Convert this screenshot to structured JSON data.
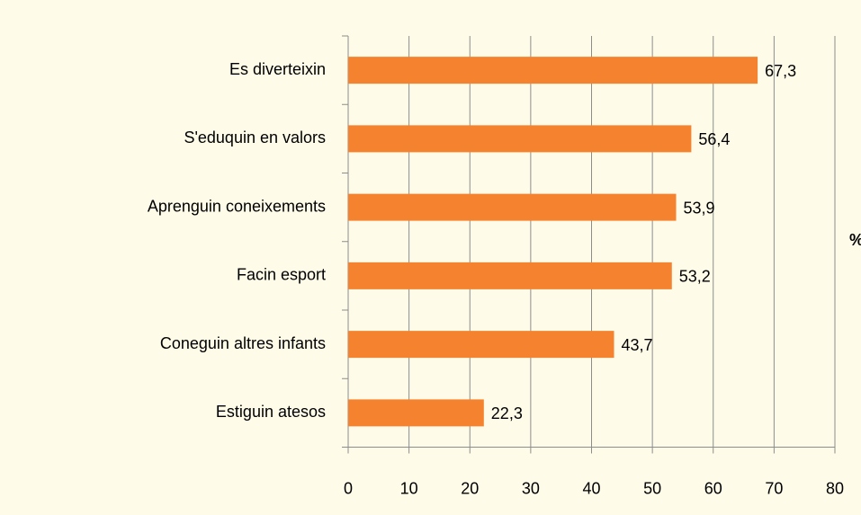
{
  "chart_data": {
    "type": "barh",
    "categories": [
      "Es diverteixin",
      "S'eduquin en valors",
      "Aprenguin coneixements",
      "Facin esport",
      "Coneguin altres infants",
      "Estiguin atesos"
    ],
    "values": [
      67.3,
      56.4,
      53.9,
      53.2,
      43.7,
      22.3
    ],
    "value_labels": [
      "67,3",
      "56,4",
      "53,9",
      "53,2",
      "43,7",
      "22,3"
    ],
    "color": "#f5822f",
    "x_label": "%",
    "xlim": [
      0,
      80
    ],
    "xticks": [
      0,
      10,
      20,
      30,
      40,
      50,
      60,
      70,
      80
    ],
    "grid": true
  }
}
